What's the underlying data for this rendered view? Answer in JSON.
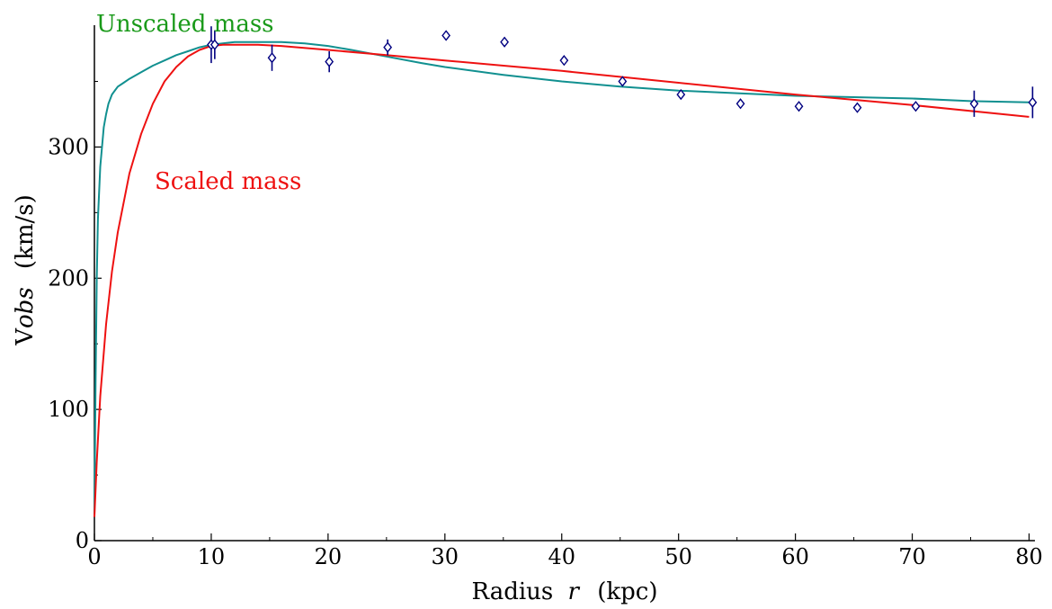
{
  "chart_data": {
    "type": "line",
    "xlabel": {
      "prefix": "Radius",
      "var": "r",
      "unit": "(kpc)"
    },
    "ylabel": {
      "prefix": "V",
      "var": "obs",
      "unit": "(km/s)"
    },
    "xlim": [
      0,
      80.5
    ],
    "ylim": [
      0,
      390
    ],
    "xticks": [
      0,
      10,
      20,
      30,
      40,
      50,
      60,
      70,
      80
    ],
    "yticks": [
      0,
      100,
      200,
      300
    ],
    "grid": false,
    "annotations": [
      {
        "text": "Unscaled mass",
        "color": "#1a9a1a"
      },
      {
        "text": "Scaled mass",
        "color": "#ee1111"
      }
    ],
    "series": [
      {
        "type": "line",
        "color": "#119090",
        "x": [
          0,
          0.1,
          0.2,
          0.3,
          0.5,
          0.8,
          1.0,
          1.2,
          1.5,
          2.0,
          2.5,
          3,
          4,
          5,
          6,
          7,
          8,
          9,
          10,
          12,
          14,
          16,
          18,
          20,
          22,
          25,
          28,
          30,
          35,
          40,
          45,
          50,
          55,
          60,
          65,
          70,
          75,
          80
        ],
        "y": [
          20,
          120,
          200,
          245,
          285,
          315,
          325,
          333,
          340,
          346,
          349,
          352,
          357,
          362,
          366,
          370,
          373,
          376,
          378,
          380,
          380,
          380,
          379,
          377,
          374,
          369,
          364,
          361,
          355,
          350,
          346,
          343,
          341,
          339,
          338,
          337,
          335,
          334
        ]
      },
      {
        "type": "line",
        "color": "#ee1111",
        "x": [
          0,
          0.2,
          0.5,
          1.0,
          1.5,
          2,
          3,
          4,
          5,
          6,
          7,
          8,
          9,
          10,
          11,
          12,
          14,
          16,
          20,
          25,
          30,
          40,
          50,
          60,
          70,
          80
        ],
        "y": [
          18,
          60,
          110,
          165,
          205,
          235,
          280,
          310,
          333,
          350,
          361,
          369,
          374,
          377,
          378,
          378,
          378,
          377,
          374,
          370,
          366,
          358,
          349,
          340,
          332,
          323
        ]
      },
      {
        "type": "scatter",
        "marker": "diamond",
        "color": "#000080",
        "x": [
          10.0,
          10.3,
          15.2,
          20.1,
          25.1,
          30.1,
          35.1,
          40.2,
          45.2,
          50.2,
          55.3,
          60.3,
          65.3,
          70.3,
          75.3,
          80.3
        ],
        "y": [
          378,
          378,
          368,
          365,
          376,
          385,
          380,
          366,
          350,
          340,
          333,
          331,
          330,
          331,
          333,
          334
        ],
        "err": [
          14,
          11,
          10,
          8,
          6,
          3,
          2,
          3,
          3,
          2,
          2,
          2,
          2,
          3,
          10,
          12
        ]
      }
    ]
  }
}
